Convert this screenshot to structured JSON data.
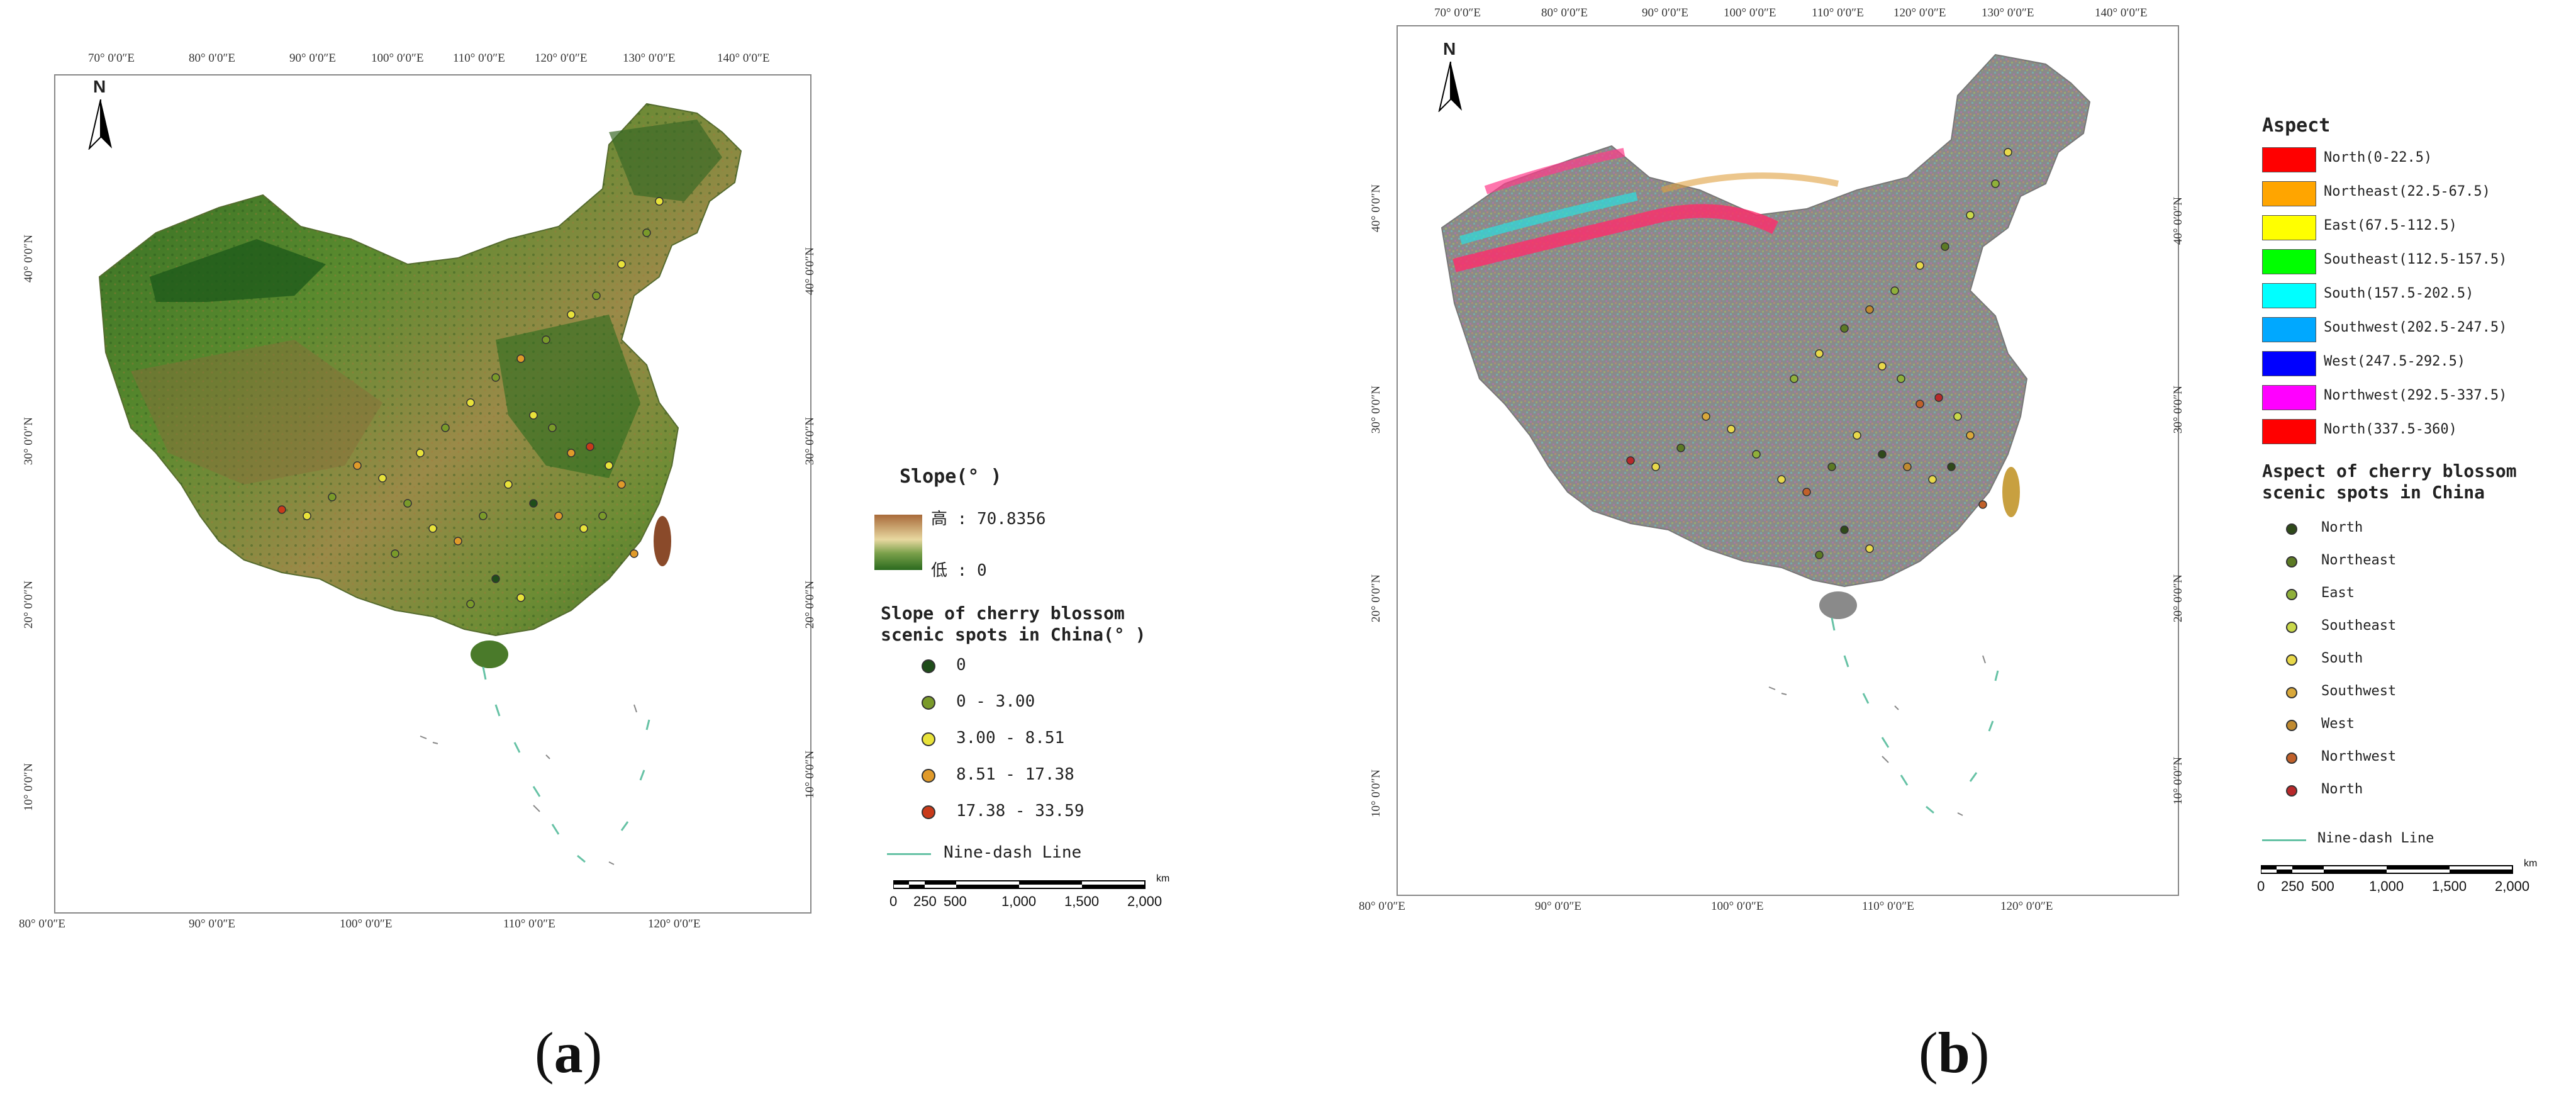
{
  "panel_a": {
    "label": "a",
    "top_ticks": [
      "70° 0′0″E",
      "80° 0′0″E",
      "90° 0′0″E",
      "100° 0′0″E",
      "110° 0′0″E",
      "120° 0′0″E",
      "130° 0′0″E",
      "140° 0′0″E"
    ],
    "bottom_ticks": [
      "80° 0′0″E",
      "90° 0′0″E",
      "100° 0′0″E",
      "110° 0′0″E",
      "120° 0′0″E"
    ],
    "left_ticks": [
      "40° 0′0″N",
      "30° 0′0″N",
      "20° 0′0″N",
      "10° 0′0″N"
    ],
    "right_ticks": [
      "40° 0′0″N",
      "30° 0′0″N",
      "20° 0′0″N",
      "10° 0′0″N"
    ],
    "north": "N",
    "legend": {
      "title": "Slope(° )",
      "high": "高 : 70.8356",
      "low": "低 : 0",
      "points_title": "Slope of cherry blossom scenic spots in China(° )",
      "classes": [
        {
          "label": "0",
          "color": "#1f4d1a"
        },
        {
          "label": "0 - 3.00",
          "color": "#7a9a2a"
        },
        {
          "label": "3.00 - 8.51",
          "color": "#e8e23a"
        },
        {
          "label": "8.51 - 17.38",
          "color": "#e09a2a"
        },
        {
          "label": "17.38 - 33.59",
          "color": "#c83a1a"
        }
      ],
      "line": "Nine-dash Line"
    },
    "scale": [
      "0",
      "250",
      "500",
      "1,000",
      "1,500",
      "2,000"
    ],
    "scale_unit": "km"
  },
  "panel_b": {
    "label": "b",
    "top_ticks": [
      "70° 0′0″E",
      "80° 0′0″E",
      "90° 0′0″E",
      "100° 0′0″E",
      "110° 0′0″E",
      "120° 0′0″E",
      "130° 0′0″E",
      "140° 0′0″E"
    ],
    "bottom_ticks": [
      "80° 0′0″E",
      "90° 0′0″E",
      "100° 0′0″E",
      "110° 0′0″E",
      "120° 0′0″E"
    ],
    "left_ticks": [
      "40° 0′0″N",
      "30° 0′0″N",
      "20° 0′0″N",
      "10° 0′0″N"
    ],
    "right_ticks": [
      "40° 0′0″N",
      "30° 0′0″N",
      "20° 0′0″N",
      "10° 0′0″N"
    ],
    "north": "N",
    "legend": {
      "title": "Aspect",
      "classes": [
        {
          "label": "North(0-22.5)",
          "color": "#ff0000"
        },
        {
          "label": "Northeast(22.5-67.5)",
          "color": "#ffa500"
        },
        {
          "label": "East(67.5-112.5)",
          "color": "#ffff00"
        },
        {
          "label": "Southeast(112.5-157.5)",
          "color": "#00ff00"
        },
        {
          "label": "South(157.5-202.5)",
          "color": "#00ffff"
        },
        {
          "label": "Southwest(202.5-247.5)",
          "color": "#00a8ff"
        },
        {
          "label": "West(247.5-292.5)",
          "color": "#0000ff"
        },
        {
          "label": "Northwest(292.5-337.5)",
          "color": "#ff00ff"
        },
        {
          "label": "North(337.5-360)",
          "color": "#ff0000"
        }
      ],
      "points_title": "Aspect of cherry blossom scenic spots in China",
      "points": [
        {
          "label": "North",
          "color": "#2f4a1a"
        },
        {
          "label": "Northeast",
          "color": "#5c7a24"
        },
        {
          "label": "East",
          "color": "#8fb03a"
        },
        {
          "label": "Southeast",
          "color": "#c9d84a"
        },
        {
          "label": "South",
          "color": "#e8d84a"
        },
        {
          "label": "Southwest",
          "color": "#d9a83a"
        },
        {
          "label": "West",
          "color": "#c08a30"
        },
        {
          "label": "Northwest",
          "color": "#c0602a"
        },
        {
          "label": "North",
          "color": "#b8282a"
        }
      ],
      "line": "Nine-dash Line"
    },
    "scale": [
      "0",
      "250",
      "500",
      "1,000",
      "1,500",
      "2,000"
    ],
    "scale_unit": "km"
  }
}
